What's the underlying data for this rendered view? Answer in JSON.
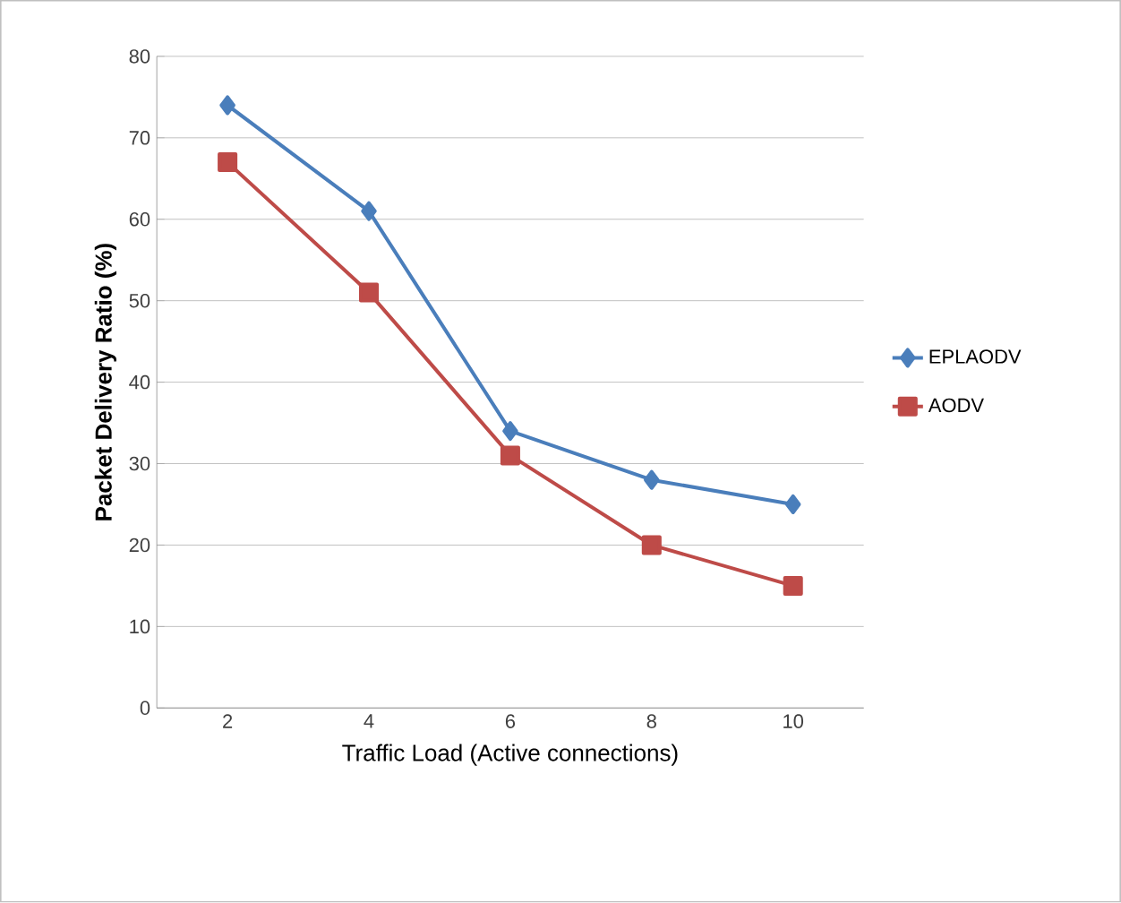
{
  "chart_data": {
    "type": "line",
    "xlabel": "Traffic Load (Active connections)",
    "ylabel": "Packet Delivery Ratio (%)",
    "categories": [
      "2",
      "4",
      "6",
      "8",
      "10"
    ],
    "series": [
      {
        "name": "EPLAODV",
        "color": "#4a7ebb",
        "marker": "diamond",
        "values": [
          74,
          61,
          34,
          28,
          25
        ]
      },
      {
        "name": "AODV",
        "color": "#be4b48",
        "marker": "square",
        "values": [
          67,
          51,
          31,
          20,
          15
        ]
      }
    ],
    "ylim": [
      0,
      80
    ],
    "yticks": [
      0,
      10,
      20,
      30,
      40,
      50,
      60,
      70,
      80
    ],
    "grid": "y",
    "legend": "right",
    "line_style": "solid"
  }
}
